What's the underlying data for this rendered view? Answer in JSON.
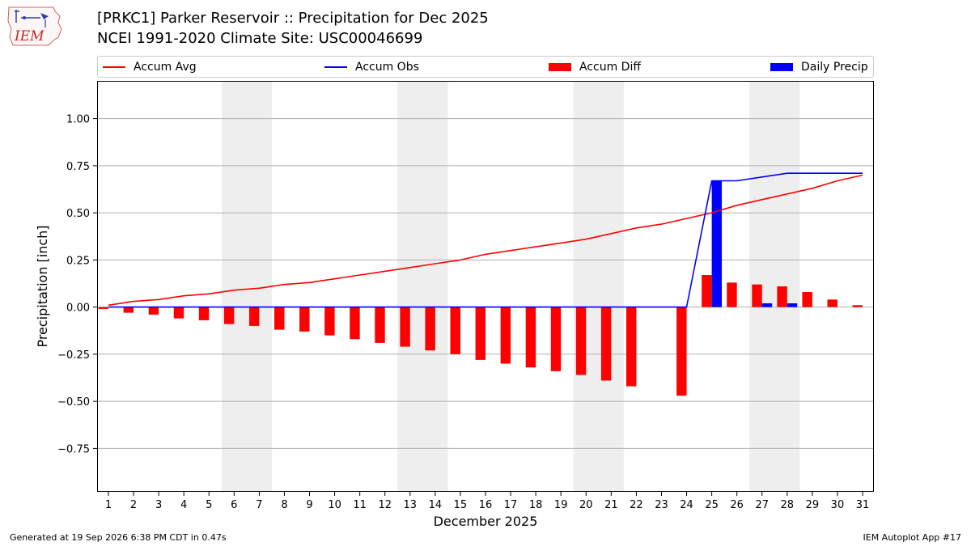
{
  "header": {
    "title_line1": "[PRKC1] Parker Reservoir :: Precipitation for Dec 2025",
    "title_line2": "NCEI 1991-2020 Climate Site: USC00046699"
  },
  "logo": {
    "text": "IEM",
    "icon": "iem-logo-icon"
  },
  "footer": {
    "left": "Generated at 19 Sep 2026 6:38 PM CDT in 0.47s",
    "right": "IEM Autoplot App #17"
  },
  "chart_data": {
    "type": "bar",
    "xlabel": "December 2025",
    "ylabel": "Precipitation [inch]",
    "ylim": [
      -0.98,
      1.2
    ],
    "yticks": [
      -0.75,
      -0.5,
      -0.25,
      0.0,
      0.25,
      0.5,
      0.75,
      1.0
    ],
    "ytick_labels": [
      "−0.75",
      "−0.50",
      "−0.25",
      "0.00",
      "0.25",
      "0.50",
      "0.75",
      "1.00"
    ],
    "x": [
      1,
      2,
      3,
      4,
      5,
      6,
      7,
      8,
      9,
      10,
      11,
      12,
      13,
      14,
      15,
      16,
      17,
      18,
      19,
      20,
      21,
      22,
      23,
      24,
      25,
      26,
      27,
      28,
      29,
      30,
      31
    ],
    "weekend_pairs": [
      [
        6,
        7
      ],
      [
        13,
        14
      ],
      [
        20,
        21
      ],
      [
        27,
        28
      ]
    ],
    "grid": "horizontal",
    "legend_position": "top",
    "colors": {
      "avg": "#ff0000",
      "obs": "#0000ff",
      "diff": "#ff0000",
      "daily": "#0000ff",
      "weekend": "#eeeeee",
      "grid": "#b0b0b0"
    },
    "series": [
      {
        "name": "Accum Avg",
        "kind": "line",
        "x": [
          1,
          2,
          3,
          4,
          5,
          6,
          7,
          8,
          9,
          10,
          11,
          12,
          13,
          14,
          15,
          16,
          17,
          18,
          19,
          20,
          21,
          22,
          23,
          24,
          25,
          26,
          27,
          28,
          29,
          30,
          31
        ],
        "values": [
          0.01,
          0.03,
          0.04,
          0.06,
          0.07,
          0.09,
          0.1,
          0.12,
          0.13,
          0.15,
          0.17,
          0.19,
          0.21,
          0.23,
          0.25,
          0.28,
          0.3,
          0.32,
          0.34,
          0.36,
          0.39,
          0.42,
          0.44,
          0.47,
          0.5,
          0.54,
          0.57,
          0.6,
          0.63,
          0.67,
          0.7
        ]
      },
      {
        "name": "Accum Obs",
        "kind": "line",
        "x": [
          1,
          2,
          3,
          4,
          5,
          6,
          7,
          8,
          9,
          10,
          11,
          12,
          13,
          14,
          15,
          16,
          17,
          18,
          19,
          20,
          21,
          22,
          24,
          25,
          26,
          27,
          28,
          29,
          30,
          31
        ],
        "values": [
          0,
          0,
          0,
          0,
          0,
          0,
          0,
          0,
          0,
          0,
          0,
          0,
          0,
          0,
          0,
          0,
          0,
          0,
          0,
          0,
          0,
          0,
          0,
          0.67,
          0.67,
          0.69,
          0.71,
          0.71,
          0.71,
          0.71
        ]
      },
      {
        "name": "Accum Diff",
        "kind": "bar",
        "x": [
          1,
          2,
          3,
          4,
          5,
          6,
          7,
          8,
          9,
          10,
          11,
          12,
          13,
          14,
          15,
          16,
          17,
          18,
          19,
          20,
          21,
          22,
          24,
          25,
          26,
          27,
          28,
          29,
          30,
          31
        ],
        "values": [
          -0.01,
          -0.03,
          -0.04,
          -0.06,
          -0.07,
          -0.09,
          -0.1,
          -0.12,
          -0.13,
          -0.15,
          -0.17,
          -0.19,
          -0.21,
          -0.23,
          -0.25,
          -0.28,
          -0.3,
          -0.32,
          -0.34,
          -0.36,
          -0.39,
          -0.42,
          -0.47,
          0.17,
          0.13,
          0.12,
          0.11,
          0.08,
          0.04,
          0.01
        ]
      },
      {
        "name": "Daily Precip",
        "kind": "bar",
        "x": [
          25,
          27,
          28
        ],
        "values": [
          0.67,
          0.02,
          0.02
        ]
      }
    ]
  }
}
